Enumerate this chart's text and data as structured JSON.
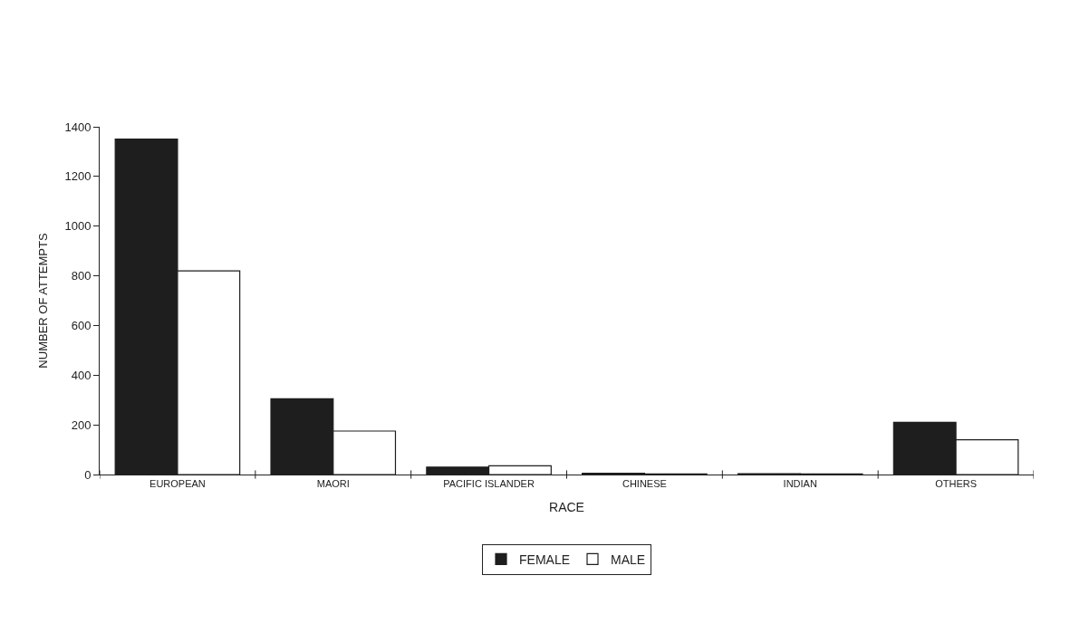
{
  "chart_data": {
    "type": "bar",
    "xlabel": "RACE",
    "ylabel": "NUMBER OF ATTEMPTS",
    "categories": [
      "EUROPEAN",
      "MAORI",
      "PACIFIC ISLANDER",
      "CHINESE",
      "INDIAN",
      "OTHERS"
    ],
    "series": [
      {
        "name": "FEMALE",
        "color": "#1e1e1e",
        "values": [
          1350,
          305,
          30,
          5,
          3,
          210
        ]
      },
      {
        "name": "MALE",
        "color": "#ffffff",
        "values": [
          820,
          175,
          35,
          2,
          2,
          140
        ]
      }
    ],
    "ylim": [
      0,
      1400
    ],
    "yticks": [
      0,
      200,
      400,
      600,
      800,
      1000,
      1200,
      1400
    ],
    "legend": "bottom"
  }
}
